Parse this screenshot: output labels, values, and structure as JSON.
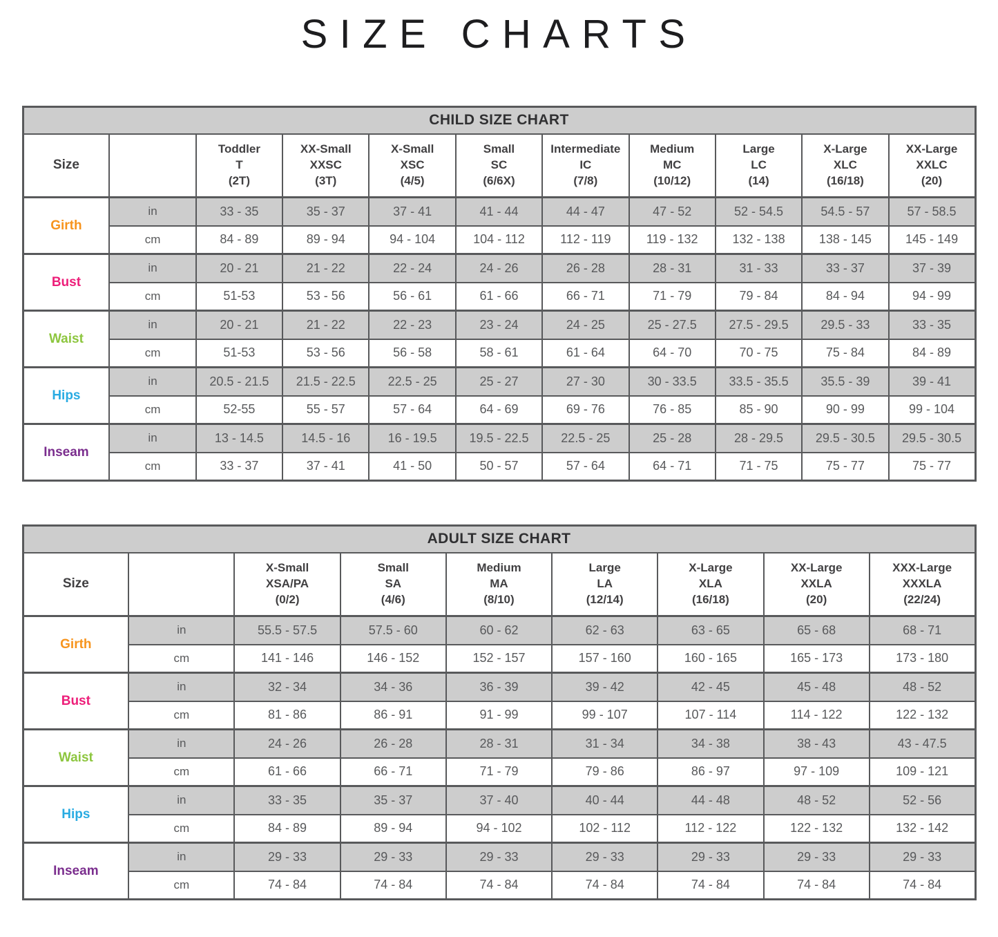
{
  "page_title": "SIZE CHARTS",
  "styles": {
    "band_bg": "#CDCDCD",
    "shade_row_bg": "#CDCDCD",
    "border_color": "#58595B",
    "value_text_color": "#58595B",
    "header_text_color": "#414042"
  },
  "chart_data": [
    {
      "type": "table",
      "header": "CHILD SIZE CHART",
      "corner_label": "Size",
      "unit_labels": [
        "in",
        "cm"
      ],
      "columns": [
        {
          "line1": "Toddler",
          "line2": "T",
          "line3": "(2T)"
        },
        {
          "line1": "XX-Small",
          "line2": "XXSC",
          "line3": "(3T)"
        },
        {
          "line1": "X-Small",
          "line2": "XSC",
          "line3": "(4/5)"
        },
        {
          "line1": "Small",
          "line2": "SC",
          "line3": "(6/6X)"
        },
        {
          "line1": "Intermediate",
          "line2": "IC",
          "line3": "(7/8)"
        },
        {
          "line1": "Medium",
          "line2": "MC",
          "line3": "(10/12)"
        },
        {
          "line1": "Large",
          "line2": "LC",
          "line3": "(14)"
        },
        {
          "line1": "X-Large",
          "line2": "XLC",
          "line3": "(16/18)"
        },
        {
          "line1": "XX-Large",
          "line2": "XXLC",
          "line3": "(20)"
        }
      ],
      "measurements": [
        {
          "label": "Girth",
          "color": "#F7941D",
          "in": [
            "33 - 35",
            "35 - 37",
            "37 - 41",
            "41 - 44",
            "44 - 47",
            "47 - 52",
            "52 - 54.5",
            "54.5 - 57",
            "57 - 58.5"
          ],
          "cm": [
            "84 - 89",
            "89 - 94",
            "94 - 104",
            "104 - 112",
            "112 - 119",
            "119 - 132",
            "132 - 138",
            "138 - 145",
            "145 - 149"
          ]
        },
        {
          "label": "Bust",
          "color": "#ED1E79",
          "in": [
            "20 - 21",
            "21 - 22",
            "22 - 24",
            "24 - 26",
            "26 - 28",
            "28 - 31",
            "31 - 33",
            "33 - 37",
            "37 - 39"
          ],
          "cm": [
            "51-53",
            "53 - 56",
            "56 - 61",
            "61 - 66",
            "66 - 71",
            "71 - 79",
            "79 - 84",
            "84 - 94",
            "94 - 99"
          ]
        },
        {
          "label": "Waist",
          "color": "#8DC63F",
          "in": [
            "20 - 21",
            "21 - 22",
            "22 - 23",
            "23 - 24",
            "24 - 25",
            "25 - 27.5",
            "27.5 - 29.5",
            "29.5 - 33",
            "33 - 35"
          ],
          "cm": [
            "51-53",
            "53 - 56",
            "56 - 58",
            "58 - 61",
            "61 - 64",
            "64 - 70",
            "70 - 75",
            "75 - 84",
            "84 - 89"
          ]
        },
        {
          "label": "Hips",
          "color": "#29ABE2",
          "in": [
            "20.5 - 21.5",
            "21.5 - 22.5",
            "22.5 - 25",
            "25 - 27",
            "27 - 30",
            "30 - 33.5",
            "33.5 - 35.5",
            "35.5 - 39",
            "39 - 41"
          ],
          "cm": [
            "52-55",
            "55 - 57",
            "57 - 64",
            "64 - 69",
            "69 - 76",
            "76 - 85",
            "85 - 90",
            "90 - 99",
            "99 - 104"
          ]
        },
        {
          "label": "Inseam",
          "color": "#7B2E8E",
          "in": [
            "13 - 14.5",
            "14.5 - 16",
            "16 - 19.5",
            "19.5 - 22.5",
            "22.5 - 25",
            "25 - 28",
            "28 - 29.5",
            "29.5 - 30.5",
            "29.5 - 30.5"
          ],
          "cm": [
            "33 - 37",
            "37 - 41",
            "41 - 50",
            "50 - 57",
            "57 - 64",
            "64 - 71",
            "71 - 75",
            "75 - 77",
            "75 - 77"
          ]
        }
      ]
    },
    {
      "type": "table",
      "header": "ADULT SIZE CHART",
      "corner_label": "Size",
      "unit_labels": [
        "in",
        "cm"
      ],
      "columns": [
        {
          "line1": "X-Small",
          "line2": "XSA/PA",
          "line3": "(0/2)"
        },
        {
          "line1": "Small",
          "line2": "SA",
          "line3": "(4/6)"
        },
        {
          "line1": "Medium",
          "line2": "MA",
          "line3": "(8/10)"
        },
        {
          "line1": "Large",
          "line2": "LA",
          "line3": "(12/14)"
        },
        {
          "line1": "X-Large",
          "line2": "XLA",
          "line3": "(16/18)"
        },
        {
          "line1": "XX-Large",
          "line2": "XXLA",
          "line3": "(20)"
        },
        {
          "line1": "XXX-Large",
          "line2": "XXXLA",
          "line3": "(22/24)"
        }
      ],
      "measurements": [
        {
          "label": "Girth",
          "color": "#F7941D",
          "in": [
            "55.5 - 57.5",
            "57.5 - 60",
            "60 - 62",
            "62 - 63",
            "63 - 65",
            "65 - 68",
            "68 - 71"
          ],
          "cm": [
            "141 - 146",
            "146 - 152",
            "152 - 157",
            "157 - 160",
            "160 - 165",
            "165 - 173",
            "173 - 180"
          ]
        },
        {
          "label": "Bust",
          "color": "#ED1E79",
          "in": [
            "32 - 34",
            "34 - 36",
            "36 - 39",
            "39 - 42",
            "42 - 45",
            "45 - 48",
            "48 - 52"
          ],
          "cm": [
            "81 - 86",
            "86 - 91",
            "91 - 99",
            "99 - 107",
            "107 - 114",
            "114 - 122",
            "122 - 132"
          ]
        },
        {
          "label": "Waist",
          "color": "#8DC63F",
          "in": [
            "24 - 26",
            "26 - 28",
            "28 - 31",
            "31 - 34",
            "34 - 38",
            "38 - 43",
            "43 - 47.5"
          ],
          "cm": [
            "61 - 66",
            "66 - 71",
            "71 - 79",
            "79 - 86",
            "86 - 97",
            "97 - 109",
            "109 - 121"
          ]
        },
        {
          "label": "Hips",
          "color": "#29ABE2",
          "in": [
            "33 - 35",
            "35 - 37",
            "37 - 40",
            "40 - 44",
            "44 - 48",
            "48 - 52",
            "52 - 56"
          ],
          "cm": [
            "84 - 89",
            "89 - 94",
            "94 - 102",
            "102 - 112",
            "112 - 122",
            "122 - 132",
            "132 - 142"
          ]
        },
        {
          "label": "Inseam",
          "color": "#7B2E8E",
          "in": [
            "29 - 33",
            "29 - 33",
            "29 - 33",
            "29 - 33",
            "29 - 33",
            "29 - 33",
            "29 - 33"
          ],
          "cm": [
            "74 - 84",
            "74 - 84",
            "74 - 84",
            "74 - 84",
            "74 - 84",
            "74 - 84",
            "74 - 84"
          ]
        }
      ]
    }
  ]
}
